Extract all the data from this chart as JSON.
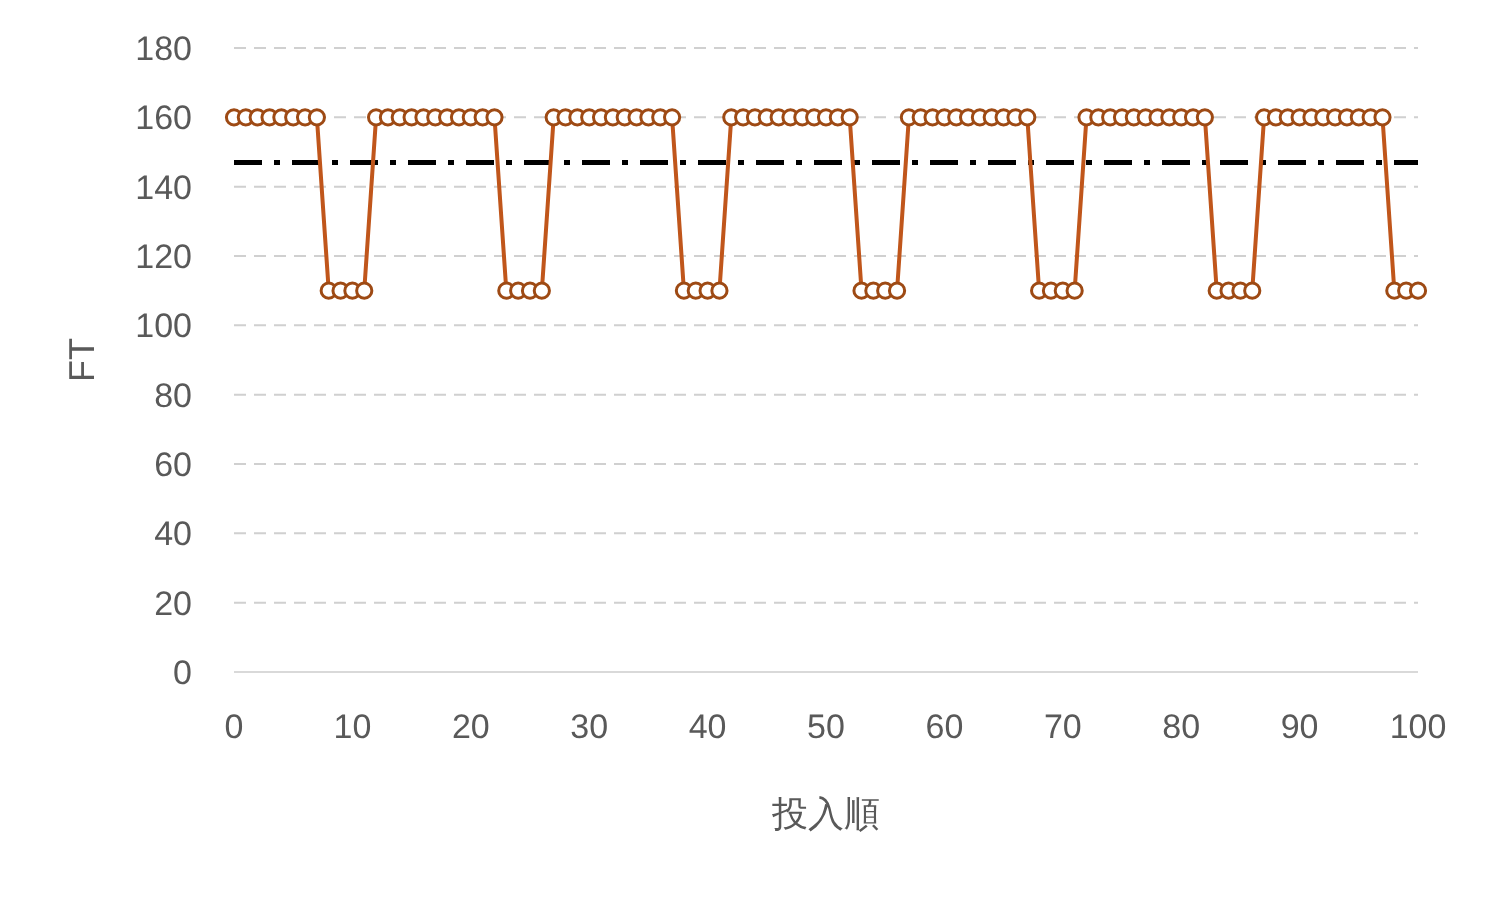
{
  "chart_data": {
    "type": "line",
    "xlabel": "投入順",
    "ylabel": "FT",
    "x": [
      0,
      1,
      2,
      3,
      4,
      5,
      6,
      7,
      8,
      9,
      10,
      11,
      12,
      13,
      14,
      15,
      16,
      17,
      18,
      19,
      20,
      21,
      22,
      23,
      24,
      25,
      26,
      27,
      28,
      29,
      30,
      31,
      32,
      33,
      34,
      35,
      36,
      37,
      38,
      39,
      40,
      41,
      42,
      43,
      44,
      45,
      46,
      47,
      48,
      49,
      50,
      51,
      52,
      53,
      54,
      55,
      56,
      57,
      58,
      59,
      60,
      61,
      62,
      63,
      64,
      65,
      66,
      67,
      68,
      69,
      70,
      71,
      72,
      73,
      74,
      75,
      76,
      77,
      78,
      79,
      80,
      81,
      82,
      83,
      84,
      85,
      86,
      87,
      88,
      89,
      90,
      91,
      92,
      93,
      94,
      95,
      96,
      97,
      98,
      99,
      100
    ],
    "series": [
      {
        "color": "#c0561b",
        "values": [
          160,
          160,
          160,
          160,
          160,
          160,
          160,
          160,
          110,
          110,
          110,
          110,
          160,
          160,
          160,
          160,
          160,
          160,
          160,
          160,
          160,
          160,
          160,
          110,
          110,
          110,
          110,
          160,
          160,
          160,
          160,
          160,
          160,
          160,
          160,
          160,
          160,
          160,
          110,
          110,
          110,
          110,
          160,
          160,
          160,
          160,
          160,
          160,
          160,
          160,
          160,
          160,
          160,
          110,
          110,
          110,
          110,
          160,
          160,
          160,
          160,
          160,
          160,
          160,
          160,
          160,
          160,
          160,
          110,
          110,
          110,
          110,
          160,
          160,
          160,
          160,
          160,
          160,
          160,
          160,
          160,
          160,
          160,
          110,
          110,
          110,
          110,
          160,
          160,
          160,
          160,
          160,
          160,
          160,
          160,
          160,
          160,
          160,
          110,
          110,
          110
        ]
      }
    ],
    "marker": "circle",
    "line_style": "solid",
    "ref_lines": [
      {
        "axis": "y",
        "value": 147,
        "color": "#000000",
        "line_style": "dashdot"
      }
    ],
    "xlim": [
      0,
      100
    ],
    "xticks": [
      0,
      10,
      20,
      30,
      40,
      50,
      60,
      70,
      80,
      90,
      100
    ],
    "ylim": [
      0,
      180
    ],
    "yticks": [
      0,
      20,
      40,
      60,
      80,
      100,
      120,
      140,
      160,
      180
    ],
    "grid": "y"
  }
}
